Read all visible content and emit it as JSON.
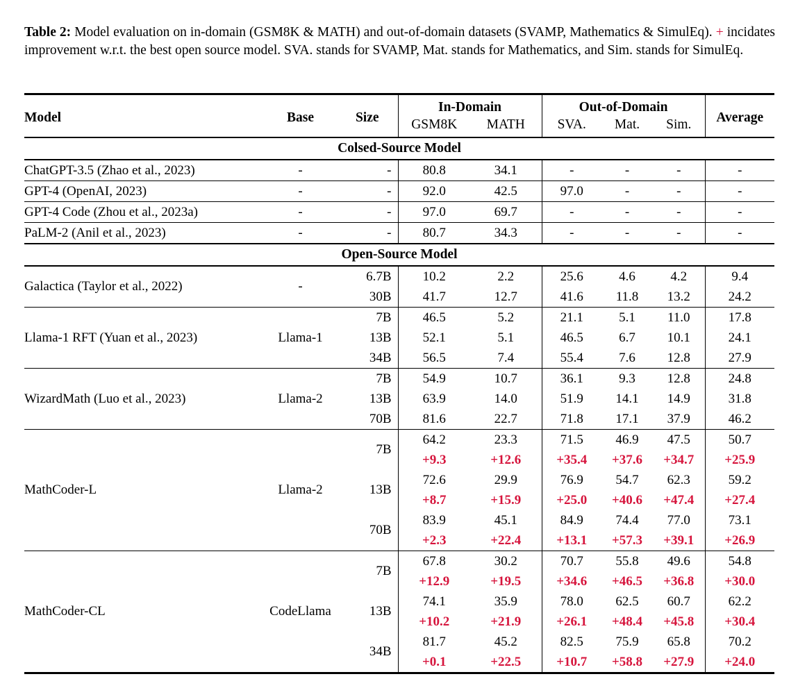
{
  "caption": {
    "label": "Table 2:",
    "text_before_plus": "Model evaluation on in-domain (GSM8K & MATH) and out-of-domain datasets (SVAMP, Mathematics & SimulEq).",
    "plus": "+",
    "text_after_plus": "incidates improvement w.r.t. the best open source model. SVA. stands for SVAMP, Mat. stands for Mathematics, and Sim. stands for SimulEq."
  },
  "colors": {
    "improvement_red": "#d6143c",
    "text": "#000000",
    "background": "#ffffff"
  },
  "table": {
    "header": {
      "model": "Model",
      "base": "Base",
      "size": "Size",
      "in_domain": "In-Domain",
      "out_of_domain": "Out-of-Domain",
      "average": "Average",
      "sub": [
        "GSM8K",
        "MATH",
        "SVA.",
        "Mat.",
        "Sim."
      ]
    },
    "sections": [
      {
        "title": "Colsed-Source Model",
        "groups": [
          {
            "model": "ChatGPT-3.5 (Zhao et al., 2023)",
            "base": "-",
            "rows": [
              {
                "size": "-",
                "values": [
                  "80.8",
                  "34.1",
                  "-",
                  "-",
                  "-",
                  "-"
                ]
              }
            ]
          },
          {
            "model": "GPT-4 (OpenAI, 2023)",
            "base": "-",
            "rows": [
              {
                "size": "-",
                "values": [
                  "92.0",
                  "42.5",
                  "97.0",
                  "-",
                  "-",
                  "-"
                ]
              }
            ]
          },
          {
            "model": "GPT-4 Code (Zhou et al., 2023a)",
            "base": "-",
            "rows": [
              {
                "size": "-",
                "values": [
                  "97.0",
                  "69.7",
                  "-",
                  "-",
                  "-",
                  "-"
                ]
              }
            ]
          },
          {
            "model": "PaLM-2 (Anil et al., 2023)",
            "base": "-",
            "rows": [
              {
                "size": "-",
                "values": [
                  "80.7",
                  "34.3",
                  "-",
                  "-",
                  "-",
                  "-"
                ]
              }
            ]
          }
        ]
      },
      {
        "title": "Open-Source Model",
        "groups": [
          {
            "model": "Galactica (Taylor et al., 2022)",
            "base": "-",
            "rows": [
              {
                "size": "6.7B",
                "values": [
                  "10.2",
                  "2.2",
                  "25.6",
                  "4.6",
                  "4.2",
                  "9.4"
                ]
              },
              {
                "size": "30B",
                "values": [
                  "41.7",
                  "12.7",
                  "41.6",
                  "11.8",
                  "13.2",
                  "24.2"
                ]
              }
            ]
          },
          {
            "model": "Llama-1 RFT (Yuan et al., 2023)",
            "base": "Llama-1",
            "rows": [
              {
                "size": "7B",
                "values": [
                  "46.5",
                  "5.2",
                  "21.1",
                  "5.1",
                  "11.0",
                  "17.8"
                ]
              },
              {
                "size": "13B",
                "values": [
                  "52.1",
                  "5.1",
                  "46.5",
                  "6.7",
                  "10.1",
                  "24.1"
                ]
              },
              {
                "size": "34B",
                "values": [
                  "56.5",
                  "7.4",
                  "55.4",
                  "7.6",
                  "12.8",
                  "27.9"
                ]
              }
            ]
          },
          {
            "model": "WizardMath (Luo et al., 2023)",
            "base": "Llama-2",
            "rows": [
              {
                "size": "7B",
                "values": [
                  "54.9",
                  "10.7",
                  "36.1",
                  "9.3",
                  "12.8",
                  "24.8"
                ]
              },
              {
                "size": "13B",
                "values": [
                  "63.9",
                  "14.0",
                  "51.9",
                  "14.1",
                  "14.9",
                  "31.8"
                ]
              },
              {
                "size": "70B",
                "values": [
                  "81.6",
                  "22.7",
                  "71.8",
                  "17.1",
                  "37.9",
                  "46.2"
                ]
              }
            ]
          },
          {
            "model": "MathCoder-L",
            "base": "Llama-2",
            "rows": [
              {
                "size": "7B",
                "values": [
                  "64.2",
                  "23.3",
                  "71.5",
                  "46.9",
                  "47.5",
                  "50.7"
                ],
                "delta": [
                  "+9.3",
                  "+12.6",
                  "+35.4",
                  "+37.6",
                  "+34.7",
                  "+25.9"
                ]
              },
              {
                "size": "13B",
                "values": [
                  "72.6",
                  "29.9",
                  "76.9",
                  "54.7",
                  "62.3",
                  "59.2"
                ],
                "delta": [
                  "+8.7",
                  "+15.9",
                  "+25.0",
                  "+40.6",
                  "+47.4",
                  "+27.4"
                ]
              },
              {
                "size": "70B",
                "values": [
                  "83.9",
                  "45.1",
                  "84.9",
                  "74.4",
                  "77.0",
                  "73.1"
                ],
                "delta": [
                  "+2.3",
                  "+22.4",
                  "+13.1",
                  "+57.3",
                  "+39.1",
                  "+26.9"
                ]
              }
            ]
          },
          {
            "model": "MathCoder-CL",
            "base": "CodeLlama",
            "rows": [
              {
                "size": "7B",
                "values": [
                  "67.8",
                  "30.2",
                  "70.7",
                  "55.8",
                  "49.6",
                  "54.8"
                ],
                "delta": [
                  "+12.9",
                  "+19.5",
                  "+34.6",
                  "+46.5",
                  "+36.8",
                  "+30.0"
                ]
              },
              {
                "size": "13B",
                "values": [
                  "74.1",
                  "35.9",
                  "78.0",
                  "62.5",
                  "60.7",
                  "62.2"
                ],
                "delta": [
                  "+10.2",
                  "+21.9",
                  "+26.1",
                  "+48.4",
                  "+45.8",
                  "+30.4"
                ]
              },
              {
                "size": "34B",
                "values": [
                  "81.7",
                  "45.2",
                  "82.5",
                  "75.9",
                  "65.8",
                  "70.2"
                ],
                "delta": [
                  "+0.1",
                  "+22.5",
                  "+10.7",
                  "+58.8",
                  "+27.9",
                  "+24.0"
                ]
              }
            ]
          }
        ]
      }
    ]
  }
}
